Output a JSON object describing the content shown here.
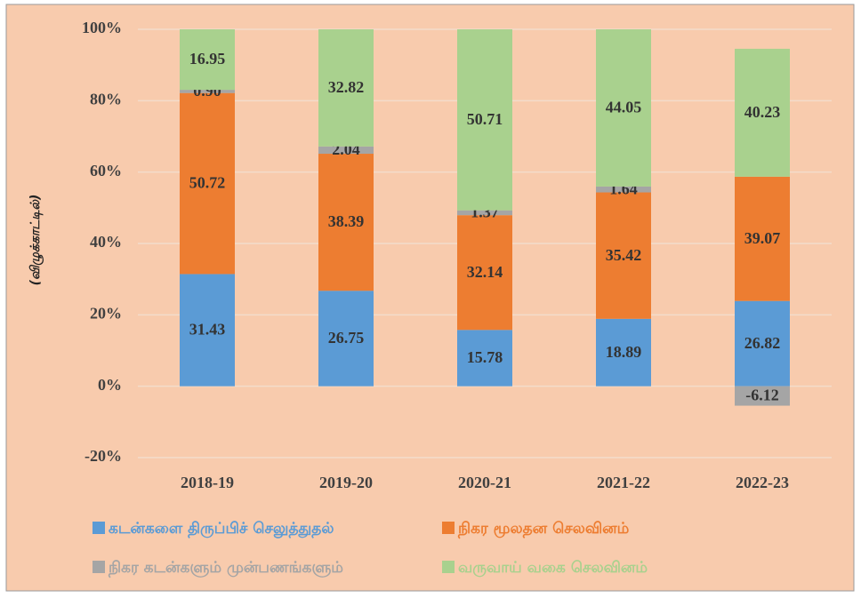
{
  "chart_data": {
    "type": "bar",
    "stacking": "percent",
    "y_axis_label": "(விழுக்காட்டில்)",
    "categories": [
      "2018-19",
      "2019-20",
      "2020-21",
      "2021-22",
      "2022-23"
    ],
    "series": [
      {
        "name": "கடன்களை திருப்பிச் செலுத்துதல்",
        "color": "#5b9bd5",
        "values": [
          31.43,
          26.75,
          15.78,
          18.89,
          26.82
        ],
        "value_labels": [
          "31.43",
          "26.75",
          "15.78",
          "18.89",
          "26.82"
        ]
      },
      {
        "name": "நிகர மூலதன செலவினம்",
        "color": "#ed7d31",
        "values": [
          50.72,
          38.39,
          32.14,
          35.42,
          39.07
        ],
        "value_labels": [
          "50.72",
          "38.39",
          "32.14",
          "35.42",
          "39.07"
        ]
      },
      {
        "name": "நிகர கடன்களும் முன்பணங்களும்",
        "color": "#a5a5a5",
        "values": [
          0.9,
          2.04,
          1.37,
          1.64,
          -6.12
        ],
        "value_labels": [
          "0.90",
          "2.04",
          "1.37",
          "1.64",
          "-6.12"
        ]
      },
      {
        "name": "வருவாய் வகை செலவினம்",
        "color": "#a9d18e",
        "values": [
          16.95,
          32.82,
          50.71,
          44.05,
          40.23
        ],
        "value_labels": [
          "16.95",
          "32.82",
          "50.71",
          "44.05",
          "40.23"
        ]
      }
    ],
    "ylim": [
      -20,
      100
    ],
    "yticks": [
      {
        "value": -20,
        "label": "-20%"
      },
      {
        "value": 0,
        "label": "0%"
      },
      {
        "value": 20,
        "label": "20%"
      },
      {
        "value": 40,
        "label": "40%"
      },
      {
        "value": 60,
        "label": "60%"
      },
      {
        "value": 80,
        "label": "80%"
      },
      {
        "value": 100,
        "label": "100%"
      }
    ],
    "grid": true,
    "legend": "bottom"
  }
}
